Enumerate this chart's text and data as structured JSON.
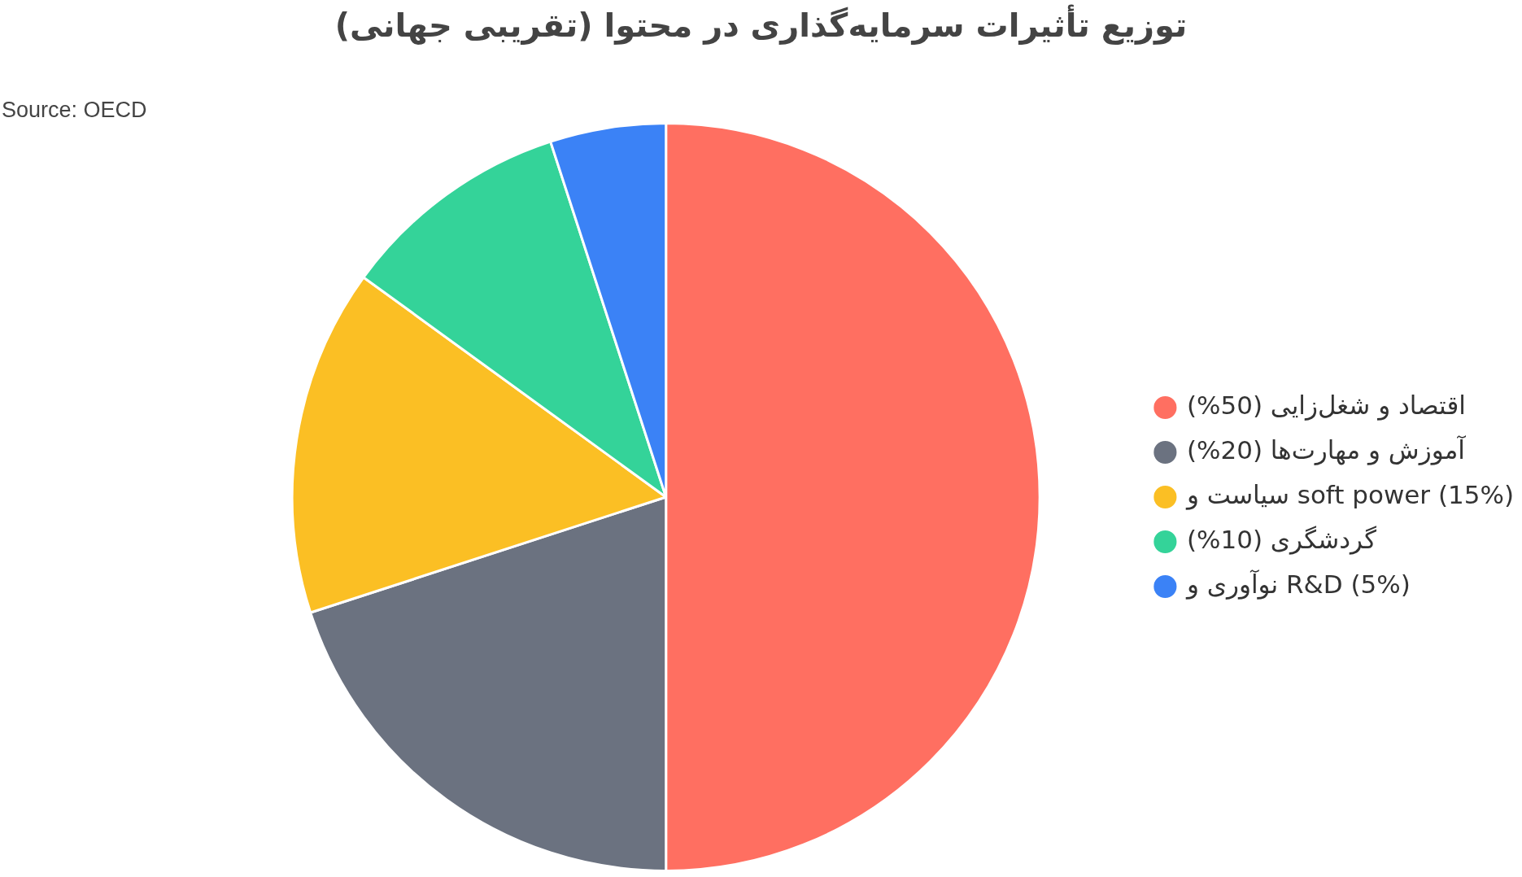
{
  "chart_data": {
    "type": "pie",
    "title": "توزیع تأثیرات سرمایه‌گذاری در محتوا (تقریبی جهانی)",
    "annotations": [
      "Source: OECD"
    ],
    "categories": [
      "اقتصاد و شغل‌زایی (50%)",
      "آموزش و مهارت‌ها (20%)",
      "سیاست و soft power (15%)",
      "گردشگری (10%)",
      "نوآوری و R&D (5%)"
    ],
    "values": [
      50,
      20,
      15,
      10,
      5
    ],
    "colors": [
      "#ff6f61",
      "#6b7280",
      "#fbbf24",
      "#34d399",
      "#3b82f6"
    ],
    "legend": "right"
  }
}
